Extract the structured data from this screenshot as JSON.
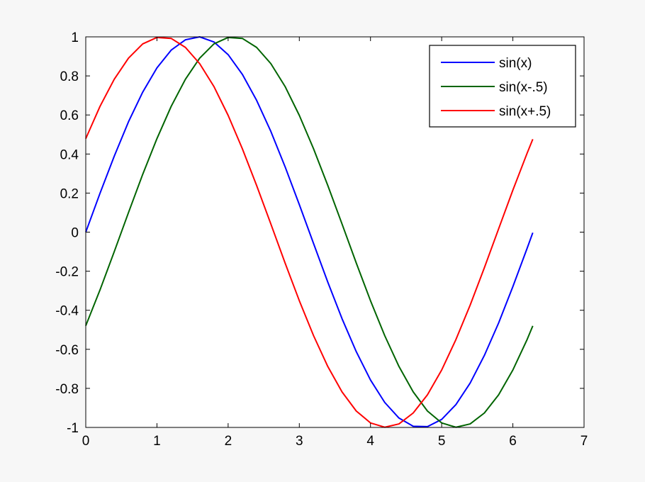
{
  "chart_data": {
    "type": "line",
    "title": "",
    "xlabel": "",
    "ylabel": "",
    "xlim": [
      0,
      7
    ],
    "ylim": [
      -1,
      1
    ],
    "xticks": [
      0,
      1,
      2,
      3,
      4,
      5,
      6,
      7
    ],
    "yticks": [
      -1,
      -0.8,
      -0.6,
      -0.4,
      -0.2,
      0,
      0.2,
      0.4,
      0.6,
      0.8,
      1
    ],
    "xtick_labels": [
      "0",
      "1",
      "2",
      "3",
      "4",
      "5",
      "6",
      "7"
    ],
    "ytick_labels": [
      "-1",
      "-0.8",
      "-0.6",
      "-0.4",
      "-0.2",
      "0",
      "0.2",
      "0.4",
      "0.6",
      "0.8",
      "1"
    ],
    "grid": false,
    "legend_position": "top-right",
    "x": [
      0.0,
      0.2,
      0.4,
      0.6,
      0.8,
      1.0,
      1.2,
      1.4,
      1.6,
      1.8,
      2.0,
      2.2,
      2.4,
      2.6,
      2.8,
      3.0,
      3.2,
      3.4,
      3.6,
      3.8,
      4.0,
      4.2,
      4.4,
      4.6,
      4.8,
      5.0,
      5.2,
      5.4,
      5.6,
      5.8,
      6.0,
      6.2,
      6.28
    ],
    "series": [
      {
        "name": "sin(x)",
        "color": "#0000ff",
        "values": [
          0.0,
          0.199,
          0.389,
          0.565,
          0.717,
          0.841,
          0.932,
          0.985,
          1.0,
          0.974,
          0.909,
          0.808,
          0.675,
          0.516,
          0.335,
          0.141,
          -0.058,
          -0.256,
          -0.443,
          -0.612,
          -0.757,
          -0.872,
          -0.952,
          -0.994,
          -0.996,
          -0.959,
          -0.883,
          -0.773,
          -0.631,
          -0.465,
          -0.279,
          -0.083,
          -0.003
        ]
      },
      {
        "name": "sin(x-.5)",
        "color": "#006400",
        "values": [
          -0.479,
          -0.296,
          -0.1,
          0.1,
          0.296,
          0.479,
          0.644,
          0.783,
          0.891,
          0.964,
          0.997,
          0.992,
          0.946,
          0.863,
          0.746,
          0.598,
          0.427,
          0.239,
          0.042,
          -0.158,
          -0.351,
          -0.53,
          -0.688,
          -0.818,
          -0.916,
          -0.977,
          -0.999,
          -0.982,
          -0.926,
          -0.833,
          -0.706,
          -0.55,
          -0.48
        ]
      },
      {
        "name": "sin(x+.5)",
        "color": "#ff0000",
        "values": [
          0.479,
          0.644,
          0.783,
          0.891,
          0.964,
          0.997,
          0.992,
          0.946,
          0.863,
          0.746,
          0.598,
          0.427,
          0.239,
          0.042,
          -0.158,
          -0.351,
          -0.53,
          -0.688,
          -0.818,
          -0.916,
          -0.977,
          -0.999,
          -0.982,
          -0.926,
          -0.833,
          -0.706,
          -0.55,
          -0.374,
          -0.182,
          0.017,
          0.215,
          0.404,
          0.476
        ]
      }
    ]
  }
}
